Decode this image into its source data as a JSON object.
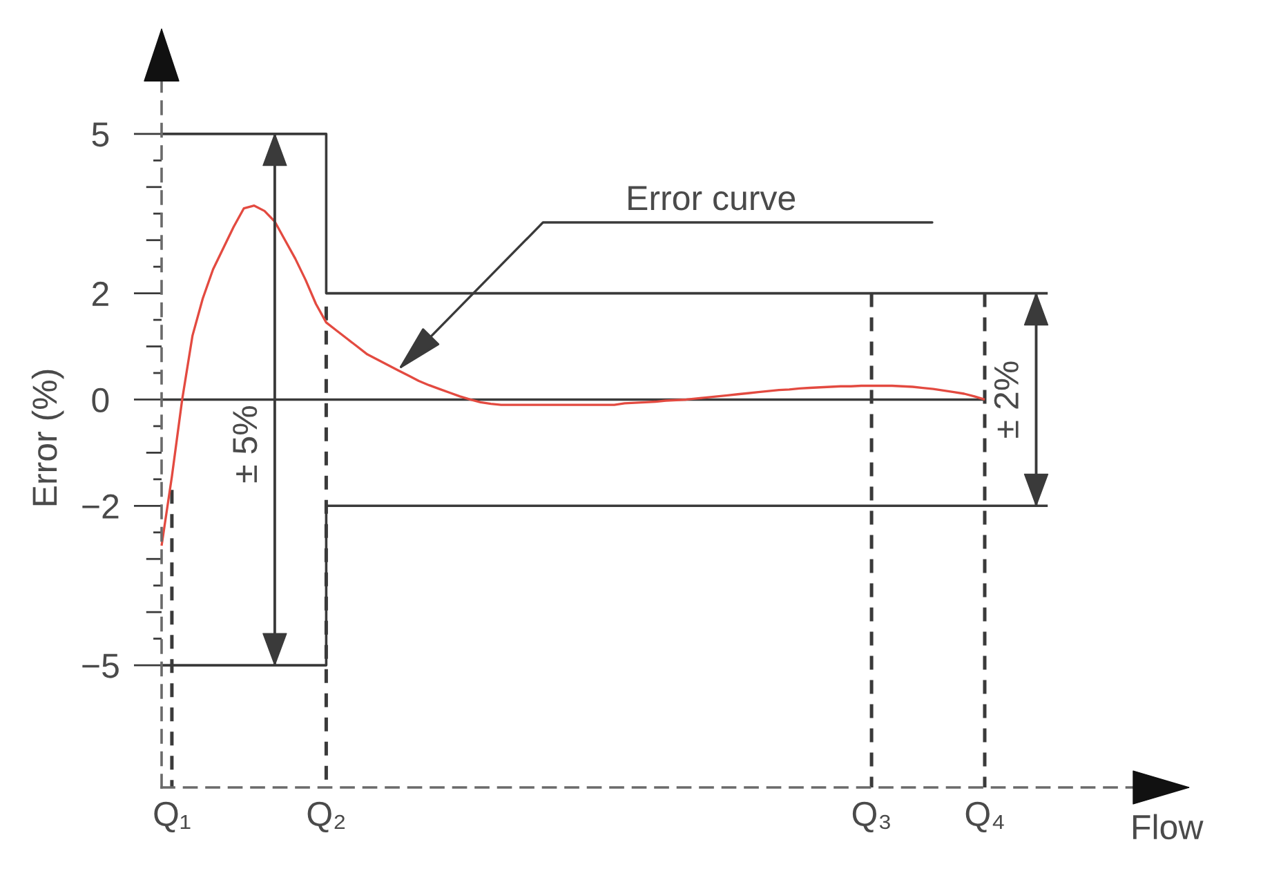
{
  "chart_data": {
    "type": "line",
    "xlabel": "Flow",
    "ylabel": "Error (%)",
    "categories": [
      null,
      "Q₁",
      null,
      null,
      null,
      null,
      null,
      null,
      null,
      null,
      null,
      null,
      null,
      null,
      null,
      null,
      "Q₂",
      null,
      null,
      null,
      null,
      null,
      null,
      null,
      null,
      null,
      null,
      null,
      null,
      null,
      null,
      null,
      null,
      null,
      null,
      null,
      null,
      null,
      null,
      null,
      null,
      null,
      null,
      null,
      null,
      null,
      null,
      null,
      null,
      null,
      null,
      null,
      null,
      null,
      null,
      null,
      null,
      null,
      null,
      null,
      null,
      null,
      null,
      null,
      null,
      null,
      null,
      null,
      null,
      "Q₃",
      null,
      null,
      null,
      null,
      null,
      null,
      null,
      null,
      null,
      null,
      "Q₄",
      null,
      null,
      null,
      null,
      null,
      null,
      null,
      null,
      null,
      null,
      null,
      null,
      null,
      null,
      null,
      null,
      null,
      null,
      null,
      null
    ],
    "ylim": [
      -7.3,
      7.0
    ],
    "yticks": [
      5,
      {
        "value": 4.5,
        "label": null
      },
      {
        "value": 4,
        "label": null
      },
      {
        "value": 3.5,
        "label": null
      },
      {
        "value": 3,
        "label": null
      },
      {
        "value": 2.5,
        "label": null
      },
      2,
      {
        "value": 1.5,
        "label": null
      },
      {
        "value": 1,
        "label": null
      },
      {
        "value": 0.5,
        "label": null
      },
      0,
      {
        "value": -0.5,
        "label": null
      },
      {
        "value": -1,
        "label": null
      },
      {
        "value": -1.5,
        "label": null
      },
      {
        "value": -2,
        "label": "−2"
      },
      {
        "value": -2.5,
        "label": null
      },
      {
        "value": -3,
        "label": null
      },
      {
        "value": -3.5,
        "label": null
      },
      {
        "value": -4,
        "label": null
      },
      {
        "value": -4.5,
        "label": null
      },
      {
        "value": -5,
        "label": "−5"
      }
    ],
    "series": [
      {
        "type": "step",
        "color": "#3a3a3a",
        "values": [
          5,
          5,
          5,
          5,
          5,
          5,
          5,
          5,
          5,
          5,
          5,
          5,
          5,
          5,
          5,
          5,
          2,
          2,
          2,
          2,
          2,
          2,
          2,
          2,
          2,
          2,
          2,
          2,
          2,
          2,
          2,
          2,
          2,
          2,
          2,
          2,
          2,
          2,
          2,
          2,
          2,
          2,
          2,
          2,
          2,
          2,
          2,
          2,
          2,
          2,
          2,
          2,
          2,
          2,
          2,
          2,
          2,
          2,
          2,
          2,
          2,
          2,
          2,
          2,
          2,
          2,
          2,
          2,
          2,
          2,
          2,
          2,
          2,
          2,
          2,
          2,
          2,
          2,
          2,
          2,
          2,
          2,
          2,
          2,
          2,
          2,
          2,
          null,
          null,
          null,
          null,
          null,
          null,
          null,
          null,
          null,
          null,
          null,
          null,
          null,
          null
        ]
      },
      {
        "type": "step",
        "color": "#3a3a3a",
        "values": [
          -5,
          -5,
          -5,
          -5,
          -5,
          -5,
          -5,
          -5,
          -5,
          -5,
          -5,
          -5,
          -5,
          -5,
          -5,
          -5,
          -2,
          -2,
          -2,
          -2,
          -2,
          -2,
          -2,
          -2,
          -2,
          -2,
          -2,
          -2,
          -2,
          -2,
          -2,
          -2,
          -2,
          -2,
          -2,
          -2,
          -2,
          -2,
          -2,
          -2,
          -2,
          -2,
          -2,
          -2,
          -2,
          -2,
          -2,
          -2,
          -2,
          -2,
          -2,
          -2,
          -2,
          -2,
          -2,
          -2,
          -2,
          -2,
          -2,
          -2,
          -2,
          -2,
          -2,
          -2,
          -2,
          -2,
          -2,
          -2,
          -2,
          -2,
          -2,
          -2,
          -2,
          -2,
          -2,
          -2,
          -2,
          -2,
          -2,
          -2,
          -2,
          -2,
          -2,
          -2,
          -2,
          -2,
          -2,
          null,
          null,
          null,
          null,
          null,
          null,
          null,
          null,
          null,
          null,
          null,
          null,
          null,
          null
        ]
      },
      {
        "color": "#3a3a3a",
        "values": [
          0,
          0,
          0,
          0,
          0,
          0,
          0,
          0,
          0,
          0,
          0,
          0,
          0,
          0,
          0,
          0,
          0,
          0,
          0,
          0,
          0,
          0,
          0,
          0,
          0,
          0,
          0,
          0,
          0,
          0,
          0,
          0,
          0,
          0,
          0,
          0,
          0,
          0,
          0,
          0,
          0,
          0,
          0,
          0,
          0,
          0,
          0,
          0,
          0,
          0,
          0,
          0,
          0,
          0,
          0,
          0,
          0,
          0,
          0,
          0,
          0,
          0,
          0,
          0,
          0,
          0,
          0,
          0,
          0,
          0,
          0,
          0,
          0,
          0,
          0,
          0,
          0,
          0,
          0,
          0,
          0,
          null,
          null,
          null,
          null,
          null,
          null,
          null,
          null,
          null,
          null,
          null,
          null,
          null,
          null,
          null,
          null,
          null,
          null,
          null,
          null
        ]
      },
      {
        "color": "#3a3a3a",
        "x": [
          "Q₁",
          "Q₁"
        ],
        "values": [
          -1.7,
          -7.3
        ],
        "line_style": "dashed"
      },
      {
        "color": "#3a3a3a",
        "x": [
          "Q₂",
          "Q₂"
        ],
        "values": [
          1.75,
          -7.3
        ],
        "line_style": "dashed"
      },
      {
        "color": "#3a3a3a",
        "x": [
          "Q₃",
          "Q₃"
        ],
        "values": [
          2,
          -7.3
        ],
        "line_style": "dashed"
      },
      {
        "color": "#3a3a3a",
        "x": [
          "Q₄",
          "Q₄"
        ],
        "values": [
          2,
          -7.3
        ],
        "line_style": "dashed"
      },
      {
        "type": "bar",
        "name": "± 5%",
        "color": "#3a3a3a",
        "values": [
          null,
          null,
          null,
          null,
          null,
          null,
          null,
          null,
          null,
          null,
          null,
          10,
          null,
          null,
          null,
          null,
          null,
          null,
          null,
          null,
          null,
          null,
          null,
          null,
          null,
          null,
          null,
          null,
          null,
          null,
          null,
          null,
          null,
          null,
          null,
          null,
          null,
          null,
          null,
          null,
          null,
          null,
          null,
          null,
          null,
          null,
          null,
          null,
          null,
          null,
          null,
          null,
          null,
          null,
          null,
          null,
          null,
          null,
          null,
          null,
          null,
          null,
          null,
          null,
          null,
          null,
          null,
          null,
          null,
          null,
          null,
          null,
          null,
          null,
          null,
          null,
          null,
          null,
          null,
          null,
          null,
          null,
          null,
          null,
          null,
          null,
          null,
          null,
          null,
          null,
          null,
          null,
          null,
          null,
          null,
          null,
          null,
          null,
          null,
          null,
          null
        ],
        "base": [
          null,
          null,
          null,
          null,
          null,
          null,
          null,
          null,
          null,
          null,
          null,
          -5,
          null,
          null,
          null,
          null,
          null,
          null,
          null,
          null,
          null,
          null,
          null,
          null,
          null,
          null,
          null,
          null,
          null,
          null,
          null,
          null,
          null,
          null,
          null,
          null,
          null,
          null,
          null,
          null,
          null,
          null,
          null,
          null,
          null,
          null,
          null,
          null,
          null,
          null,
          null,
          null,
          null,
          null,
          null,
          null,
          null,
          null,
          null,
          null,
          null,
          null,
          null,
          null,
          null,
          null,
          null,
          null,
          null,
          null,
          null,
          null,
          null,
          null,
          null,
          null,
          null,
          null,
          null,
          null,
          null,
          null,
          null,
          null,
          null,
          null,
          null,
          null,
          null,
          null,
          null,
          null,
          null,
          null,
          null,
          null,
          null,
          null,
          null,
          null,
          null
        ]
      },
      {
        "type": "bar",
        "name": "± 2%",
        "color": "#3a3a3a",
        "values": [
          null,
          null,
          null,
          null,
          null,
          null,
          null,
          null,
          null,
          null,
          null,
          null,
          null,
          null,
          null,
          null,
          null,
          null,
          null,
          null,
          null,
          null,
          null,
          null,
          null,
          null,
          null,
          null,
          null,
          null,
          null,
          null,
          null,
          null,
          null,
          null,
          null,
          null,
          null,
          null,
          null,
          null,
          null,
          null,
          null,
          null,
          null,
          null,
          null,
          null,
          null,
          null,
          null,
          null,
          null,
          null,
          null,
          null,
          null,
          null,
          null,
          null,
          null,
          null,
          null,
          null,
          null,
          null,
          null,
          null,
          null,
          null,
          null,
          null,
          null,
          null,
          null,
          null,
          null,
          null,
          null,
          null,
          null,
          null,
          null,
          4,
          null,
          null,
          null,
          null,
          null,
          null,
          null,
          null,
          null,
          null,
          null,
          null,
          null,
          null,
          null
        ],
        "base": [
          null,
          null,
          null,
          null,
          null,
          null,
          null,
          null,
          null,
          null,
          null,
          null,
          null,
          null,
          null,
          null,
          null,
          null,
          null,
          null,
          null,
          null,
          null,
          null,
          null,
          null,
          null,
          null,
          null,
          null,
          null,
          null,
          null,
          null,
          null,
          null,
          null,
          null,
          null,
          null,
          null,
          null,
          null,
          null,
          null,
          null,
          null,
          null,
          null,
          null,
          null,
          null,
          null,
          null,
          null,
          null,
          null,
          null,
          null,
          null,
          null,
          null,
          null,
          null,
          null,
          null,
          null,
          null,
          null,
          null,
          null,
          null,
          null,
          null,
          null,
          null,
          null,
          null,
          null,
          null,
          null,
          null,
          null,
          null,
          null,
          -2,
          null,
          null,
          null,
          null,
          null,
          null,
          null,
          null,
          null,
          null,
          null,
          null,
          null,
          null,
          null
        ]
      },
      {
        "color": "#e34a40",
        "values": [
          -2.75,
          -1.45,
          0,
          1.2,
          1.9,
          2.45,
          2.85,
          3.25,
          3.6,
          3.65,
          3.55,
          3.35,
          3.0,
          2.65,
          2.25,
          1.8,
          1.45,
          1.3,
          1.15,
          1.0,
          0.85,
          0.75,
          0.65,
          0.55,
          0.45,
          0.35,
          0.27,
          0.2,
          0.13,
          0.06,
          0,
          -0.05,
          -0.08,
          -0.1,
          -0.1,
          -0.1,
          -0.1,
          -0.1,
          -0.1,
          -0.1,
          -0.1,
          -0.1,
          -0.1,
          -0.1,
          -0.1,
          -0.07,
          -0.06,
          -0.05,
          -0.04,
          -0.02,
          -0.01,
          0,
          0.02,
          0.04,
          0.06,
          0.08,
          0.1,
          0.12,
          0.14,
          0.16,
          0.18,
          0.19,
          0.21,
          0.22,
          0.23,
          0.24,
          0.25,
          0.25,
          0.26,
          0.26,
          0.26,
          0.26,
          0.25,
          0.24,
          0.22,
          0.2,
          0.17,
          0.14,
          0.11,
          0.06,
          0,
          null,
          null,
          null,
          null,
          null,
          null,
          null,
          null,
          null,
          null,
          null,
          null,
          null,
          null,
          null,
          null,
          null,
          null,
          null,
          null
        ]
      }
    ],
    "annotations": [
      "Error curve"
    ]
  }
}
